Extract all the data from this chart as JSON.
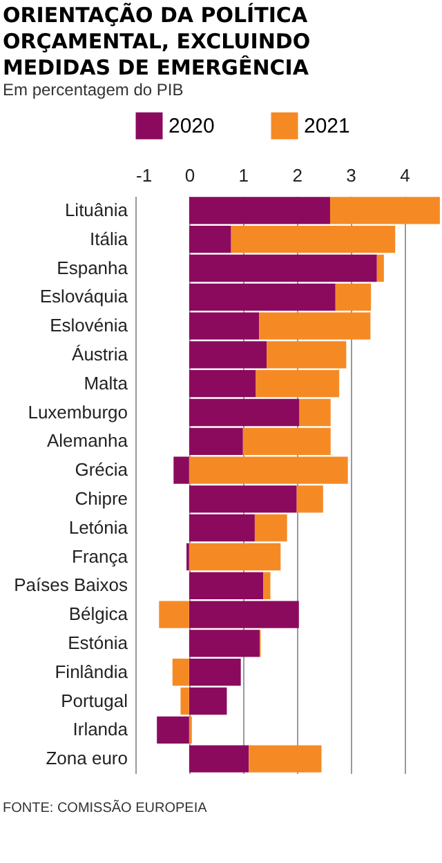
{
  "chart_data": {
    "type": "bar",
    "title": [
      "ORIENTAÇÃO DA POLÍTICA",
      "ORÇAMENTAL, EXCLUINDO",
      "MEDIDAS DE EMERGÊNCIA"
    ],
    "subtitle": "Em percentagem do PIB",
    "categories": [
      "Lituânia",
      "Itália",
      "Espanha",
      "Eslováquia",
      "Eslovénia",
      "Áustria",
      "Malta",
      "Luxemburgo",
      "Alemanha",
      "Grécia",
      "Chipre",
      "Letónia",
      "França",
      "Países Baixos",
      "Bélgica",
      "Estónia",
      "Finlândia",
      "Portugal",
      "Irlanda",
      "Zona euro"
    ],
    "series": [
      {
        "name": "2020",
        "color": "#8b0a5e",
        "values": [
          2.62,
          0.78,
          3.49,
          2.72,
          1.3,
          1.44,
          1.24,
          2.05,
          1.0,
          -0.29,
          2.0,
          1.22,
          -0.05,
          1.38,
          2.04,
          1.31,
          0.96,
          0.7,
          -0.6,
          1.11
        ]
      },
      {
        "name": "2021",
        "color": "#f58a25",
        "values": [
          2.04,
          3.05,
          0.13,
          0.66,
          2.07,
          1.48,
          1.55,
          0.58,
          1.63,
          2.95,
          0.49,
          0.6,
          1.7,
          0.13,
          -0.56,
          0.02,
          -0.31,
          -0.16,
          0.05,
          1.35
        ]
      }
    ],
    "stacked": true,
    "orientation": "horizontal",
    "xlim": [
      -1,
      4.7
    ],
    "xticks": [
      -1,
      0,
      1,
      2,
      3,
      4
    ],
    "grid": "x",
    "legend": "top",
    "annotations": [
      "FONTE: COMISSÃO EUROPEIA"
    ]
  }
}
